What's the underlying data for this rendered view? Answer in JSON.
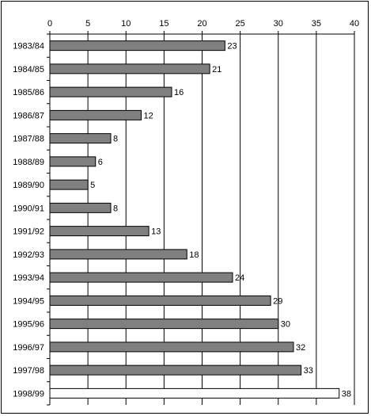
{
  "chart_data": {
    "type": "bar",
    "orientation": "horizontal",
    "title": "",
    "xlabel": "",
    "ylabel": "",
    "xlim": [
      0,
      40
    ],
    "x_ticks": [
      0,
      5,
      10,
      15,
      20,
      25,
      30,
      35,
      40
    ],
    "grid": "vertical lines at major x ticks",
    "legend": "none",
    "categories": [
      "1983/84",
      "1984/85",
      "1985/86",
      "1986/87",
      "1987/88",
      "1988/89",
      "1989/90",
      "1990/91",
      "1991/92",
      "1992/93",
      "1993/94",
      "1994/95",
      "1995/96",
      "1996/97",
      "1997/98",
      "1998/99"
    ],
    "values": [
      23,
      21,
      16,
      12,
      8,
      6,
      5,
      8,
      13,
      18,
      24,
      29,
      30,
      32,
      33,
      38
    ],
    "data_labels": [
      "23",
      "21",
      "16",
      "12",
      "8",
      "6",
      "5",
      "8",
      "13",
      "18",
      "24",
      "29",
      "30",
      "32",
      "33",
      "38"
    ],
    "colors": {
      "bar_fill": "#808080",
      "highlight_bar_fill": "#ffffff",
      "bar_stroke": "#000000",
      "grid": "#000000"
    },
    "highlight_category": "1998/99"
  }
}
